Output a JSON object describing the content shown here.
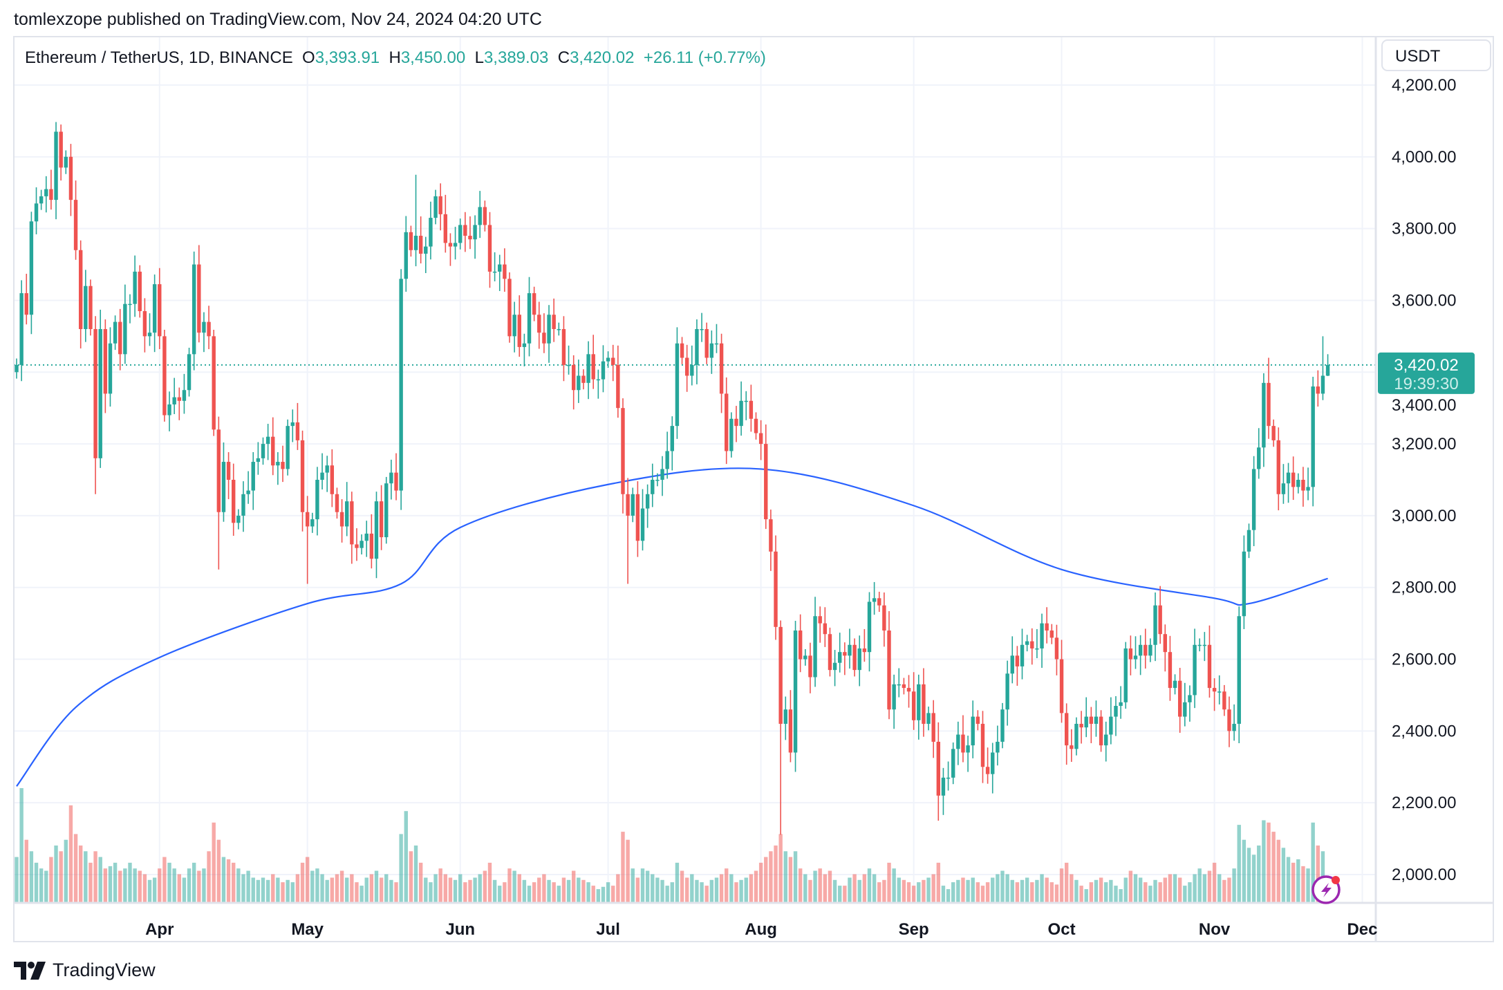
{
  "header": {
    "published": "tomlexzope published on TradingView.com, Nov 24, 2024 04:20 UTC"
  },
  "legend": {
    "symbol": "Ethereum / TetherUS, 1D, BINANCE",
    "o_label": "O",
    "o_value": "3,393.91",
    "h_label": "H",
    "h_value": "3,450.00",
    "l_label": "L",
    "l_value": "3,389.03",
    "c_label": "C",
    "c_value": "3,420.02",
    "change": "+26.11 (+0.77%)"
  },
  "price_axis": {
    "currency": "USDT",
    "last_price": "3,420.02",
    "countdown": "19:39:30"
  },
  "footer": {
    "brand": "TradingView"
  },
  "colors": {
    "up": "#26a69a",
    "down": "#ef5350",
    "ma": "#2962ff",
    "grid": "#f0f3fa",
    "alert_icon": "#9c27b0"
  },
  "icons": [
    "tradingview-logo-icon",
    "lightning-alert-icon"
  ],
  "chart_data": {
    "type": "candlestick",
    "title": "",
    "xlabel": "",
    "ylabel": "",
    "ylim": [
      1920,
      4260
    ],
    "y_ticks": [
      "2,000.00",
      "2,200.00",
      "2,400.00",
      "2,600.00",
      "2,800.00",
      "3,000.00",
      "3,200.00",
      "3,400.00",
      "3,600.00",
      "3,800.00",
      "4,000.00",
      "4,200.00"
    ],
    "y_tick_values": [
      2000,
      2200,
      2400,
      2600,
      2800,
      3000,
      3200,
      3400,
      3600,
      3800,
      4000,
      4200
    ],
    "x_ticks": [
      "Apr",
      "May",
      "Jun",
      "Jul",
      "Aug",
      "Sep",
      "Oct",
      "Nov",
      "Dec"
    ],
    "grid": true,
    "last_price_line": 3420.02,
    "months": [
      {
        "month": "Mar",
        "first_day": 3,
        "days_in_month": 31,
        "close": [
          3420,
          3620,
          3560,
          3820,
          3870,
          3890,
          3910,
          3880,
          4070,
          3970,
          4000,
          3880,
          3740,
          3520,
          3640,
          3520,
          3160,
          3520,
          3340,
          3480,
          3540,
          3450,
          3590,
          3590,
          3680,
          3570,
          3500,
          3510,
          3645
        ],
        "volume": [
          40,
          100,
          55,
          45,
          35,
          30,
          28,
          40,
          50,
          45,
          55,
          85,
          60,
          50,
          45,
          35,
          45,
          40,
          30,
          32,
          35,
          28,
          30,
          35,
          30,
          28,
          25,
          20,
          22
        ]
      },
      {
        "month": "Apr",
        "first_day": 1,
        "days_in_month": 30,
        "close": [
          3500,
          3280,
          3310,
          3330,
          3320,
          3350,
          3450,
          3700,
          3510,
          3540,
          3500,
          3240,
          3010,
          3150,
          3100,
          2980,
          3000,
          3060,
          3070,
          3150,
          3160,
          3200,
          3220,
          3140,
          3150,
          3130,
          3250,
          3260,
          3210,
          3010
        ],
        "volume": [
          30,
          40,
          35,
          30,
          25,
          22,
          30,
          35,
          28,
          30,
          45,
          70,
          55,
          40,
          38,
          35,
          30,
          25,
          28,
          22,
          20,
          22,
          20,
          25,
          22,
          18,
          20,
          18,
          25,
          35
        ]
      },
      {
        "month": "May",
        "first_day": 1,
        "days_in_month": 31,
        "close": [
          2970,
          2990,
          3100,
          3120,
          3140,
          3060,
          3010,
          2970,
          3040,
          2920,
          2910,
          2930,
          2950,
          2880,
          3040,
          2940,
          3090,
          3120,
          3070,
          3660,
          3790,
          3740,
          3780,
          3730,
          3750,
          3830,
          3890,
          3840,
          3760,
          3750,
          3760
        ],
        "volume": [
          40,
          28,
          30,
          25,
          20,
          22,
          25,
          28,
          22,
          25,
          18,
          15,
          22,
          25,
          28,
          22,
          25,
          20,
          18,
          60,
          80,
          45,
          50,
          35,
          22,
          18,
          25,
          30,
          25,
          22,
          20
        ]
      },
      {
        "month": "Jun",
        "first_day": 1,
        "days_in_month": 30,
        "close": [
          3810,
          3780,
          3770,
          3810,
          3860,
          3810,
          3680,
          3680,
          3700,
          3660,
          3500,
          3560,
          3470,
          3480,
          3620,
          3560,
          3510,
          3480,
          3560,
          3520,
          3520,
          3420,
          3420,
          3350,
          3390,
          3370,
          3450,
          3380,
          3380,
          3430
        ],
        "volume": [
          25,
          18,
          20,
          22,
          25,
          28,
          35,
          20,
          15,
          18,
          30,
          28,
          25,
          20,
          15,
          18,
          22,
          25,
          20,
          18,
          15,
          22,
          20,
          28,
          22,
          20,
          18,
          15,
          12,
          14
        ]
      },
      {
        "month": "Jul",
        "first_day": 1,
        "days_in_month": 31,
        "close": [
          3440,
          3420,
          3300,
          3060,
          3000,
          3060,
          2930,
          3020,
          3060,
          3100,
          3100,
          3130,
          3180,
          3250,
          3480,
          3440,
          3390,
          3420,
          3520,
          3520,
          3440,
          3480,
          3480,
          3340,
          3180,
          3270,
          3250,
          3320,
          3320,
          3270,
          3230
        ],
        "volume": [
          18,
          15,
          25,
          62,
          55,
          30,
          22,
          30,
          28,
          25,
          22,
          20,
          15,
          18,
          35,
          28,
          22,
          25,
          20,
          18,
          15,
          20,
          22,
          25,
          30,
          25,
          18,
          20,
          22,
          25,
          28
        ]
      },
      {
        "month": "Aug",
        "first_day": 1,
        "days_in_month": 31,
        "close": [
          3200,
          2990,
          2900,
          2690,
          2420,
          2460,
          2340,
          2680,
          2600,
          2610,
          2550,
          2720,
          2700,
          2670,
          2570,
          2590,
          2620,
          2610,
          2640,
          2570,
          2630,
          2620,
          2760,
          2770,
          2750,
          2680,
          2460,
          2530,
          2530,
          2520,
          2510
        ],
        "volume": [
          35,
          40,
          45,
          50,
          60,
          45,
          40,
          45,
          30,
          25,
          20,
          28,
          30,
          25,
          28,
          20,
          15,
          15,
          22,
          25,
          20,
          25,
          30,
          25,
          18,
          20,
          35,
          30,
          22,
          20,
          18
        ]
      },
      {
        "month": "Sep",
        "first_day": 1,
        "days_in_month": 30,
        "close": [
          2430,
          2530,
          2420,
          2450,
          2370,
          2220,
          2270,
          2270,
          2350,
          2390,
          2340,
          2360,
          2440,
          2420,
          2300,
          2280,
          2340,
          2370,
          2460,
          2560,
          2610,
          2580,
          2640,
          2650,
          2630,
          2630,
          2700,
          2680,
          2660,
          2600
        ],
        "volume": [
          15,
          18,
          20,
          22,
          25,
          35,
          15,
          12,
          18,
          20,
          22,
          20,
          22,
          18,
          15,
          18,
          22,
          25,
          28,
          25,
          20,
          18,
          20,
          22,
          18,
          20,
          25,
          22,
          18,
          16
        ]
      },
      {
        "month": "Oct",
        "first_day": 1,
        "days_in_month": 31,
        "close": [
          2450,
          2360,
          2350,
          2420,
          2410,
          2440,
          2420,
          2440,
          2360,
          2390,
          2440,
          2470,
          2480,
          2630,
          2600,
          2610,
          2640,
          2610,
          2640,
          2750,
          2670,
          2620,
          2520,
          2540,
          2440,
          2480,
          2500,
          2640,
          2640,
          2640,
          2520
        ],
        "volume": [
          30,
          35,
          25,
          20,
          15,
          12,
          18,
          20,
          22,
          18,
          20,
          15,
          12,
          22,
          28,
          25,
          22,
          18,
          15,
          20,
          18,
          22,
          25,
          25,
          22,
          15,
          18,
          25,
          30,
          25,
          28
        ]
      },
      {
        "month": "Nov",
        "first_day": 1,
        "days_in_month": 30,
        "close": [
          2510,
          2510,
          2460,
          2400,
          2420,
          2720,
          2900,
          2960,
          3130,
          3190,
          3370,
          3250,
          3210,
          3060,
          3090,
          3120,
          3080,
          3100,
          3070,
          3080,
          3360,
          3340,
          3390,
          3420.02
        ],
        "volume": [
          35,
          25,
          20,
          22,
          30,
          68,
          55,
          48,
          42,
          50,
          72,
          70,
          62,
          55,
          48,
          40,
          35,
          38,
          32,
          30,
          70,
          50,
          45,
          20
        ]
      }
    ],
    "notable_wicks": [
      {
        "month": "Mar",
        "day": 12,
        "high": 4090
      },
      {
        "month": "Mar",
        "day": 19,
        "low": 3060
      },
      {
        "month": "Apr",
        "day": 13,
        "low": 2850
      },
      {
        "month": "May",
        "day": 1,
        "low": 2810
      },
      {
        "month": "May",
        "day": 23,
        "high": 3950
      },
      {
        "month": "Jul",
        "day": 5,
        "low": 2810
      },
      {
        "month": "Aug",
        "day": 5,
        "low": 2111
      },
      {
        "month": "Sep",
        "day": 6,
        "low": 2150
      },
      {
        "month": "Nov",
        "day": 12,
        "high": 3440
      },
      {
        "month": "Nov",
        "day": 23,
        "high": 3500
      },
      {
        "month": "Nov",
        "day": 24,
        "high": 3450,
        "low": 3389.03
      }
    ],
    "moving_average": [
      {
        "month": "Mar",
        "day": 3,
        "value": 2246
      },
      {
        "month": "Mar",
        "day": 15,
        "value": 2466
      },
      {
        "month": "Apr",
        "day": 1,
        "value": 2605
      },
      {
        "month": "May",
        "day": 1,
        "value": 2755
      },
      {
        "month": "May",
        "day": 20,
        "value": 2810
      },
      {
        "month": "Jun",
        "day": 1,
        "value": 2967
      },
      {
        "month": "Jul",
        "day": 1,
        "value": 3087
      },
      {
        "month": "Aug",
        "day": 1,
        "value": 3130
      },
      {
        "month": "Sep",
        "day": 1,
        "value": 3028
      },
      {
        "month": "Oct",
        "day": 1,
        "value": 2850
      },
      {
        "month": "Nov",
        "day": 1,
        "value": 2770
      },
      {
        "month": "Nov",
        "day": 8,
        "value": 2755
      },
      {
        "month": "Nov",
        "day": 24,
        "value": 2825
      }
    ]
  }
}
